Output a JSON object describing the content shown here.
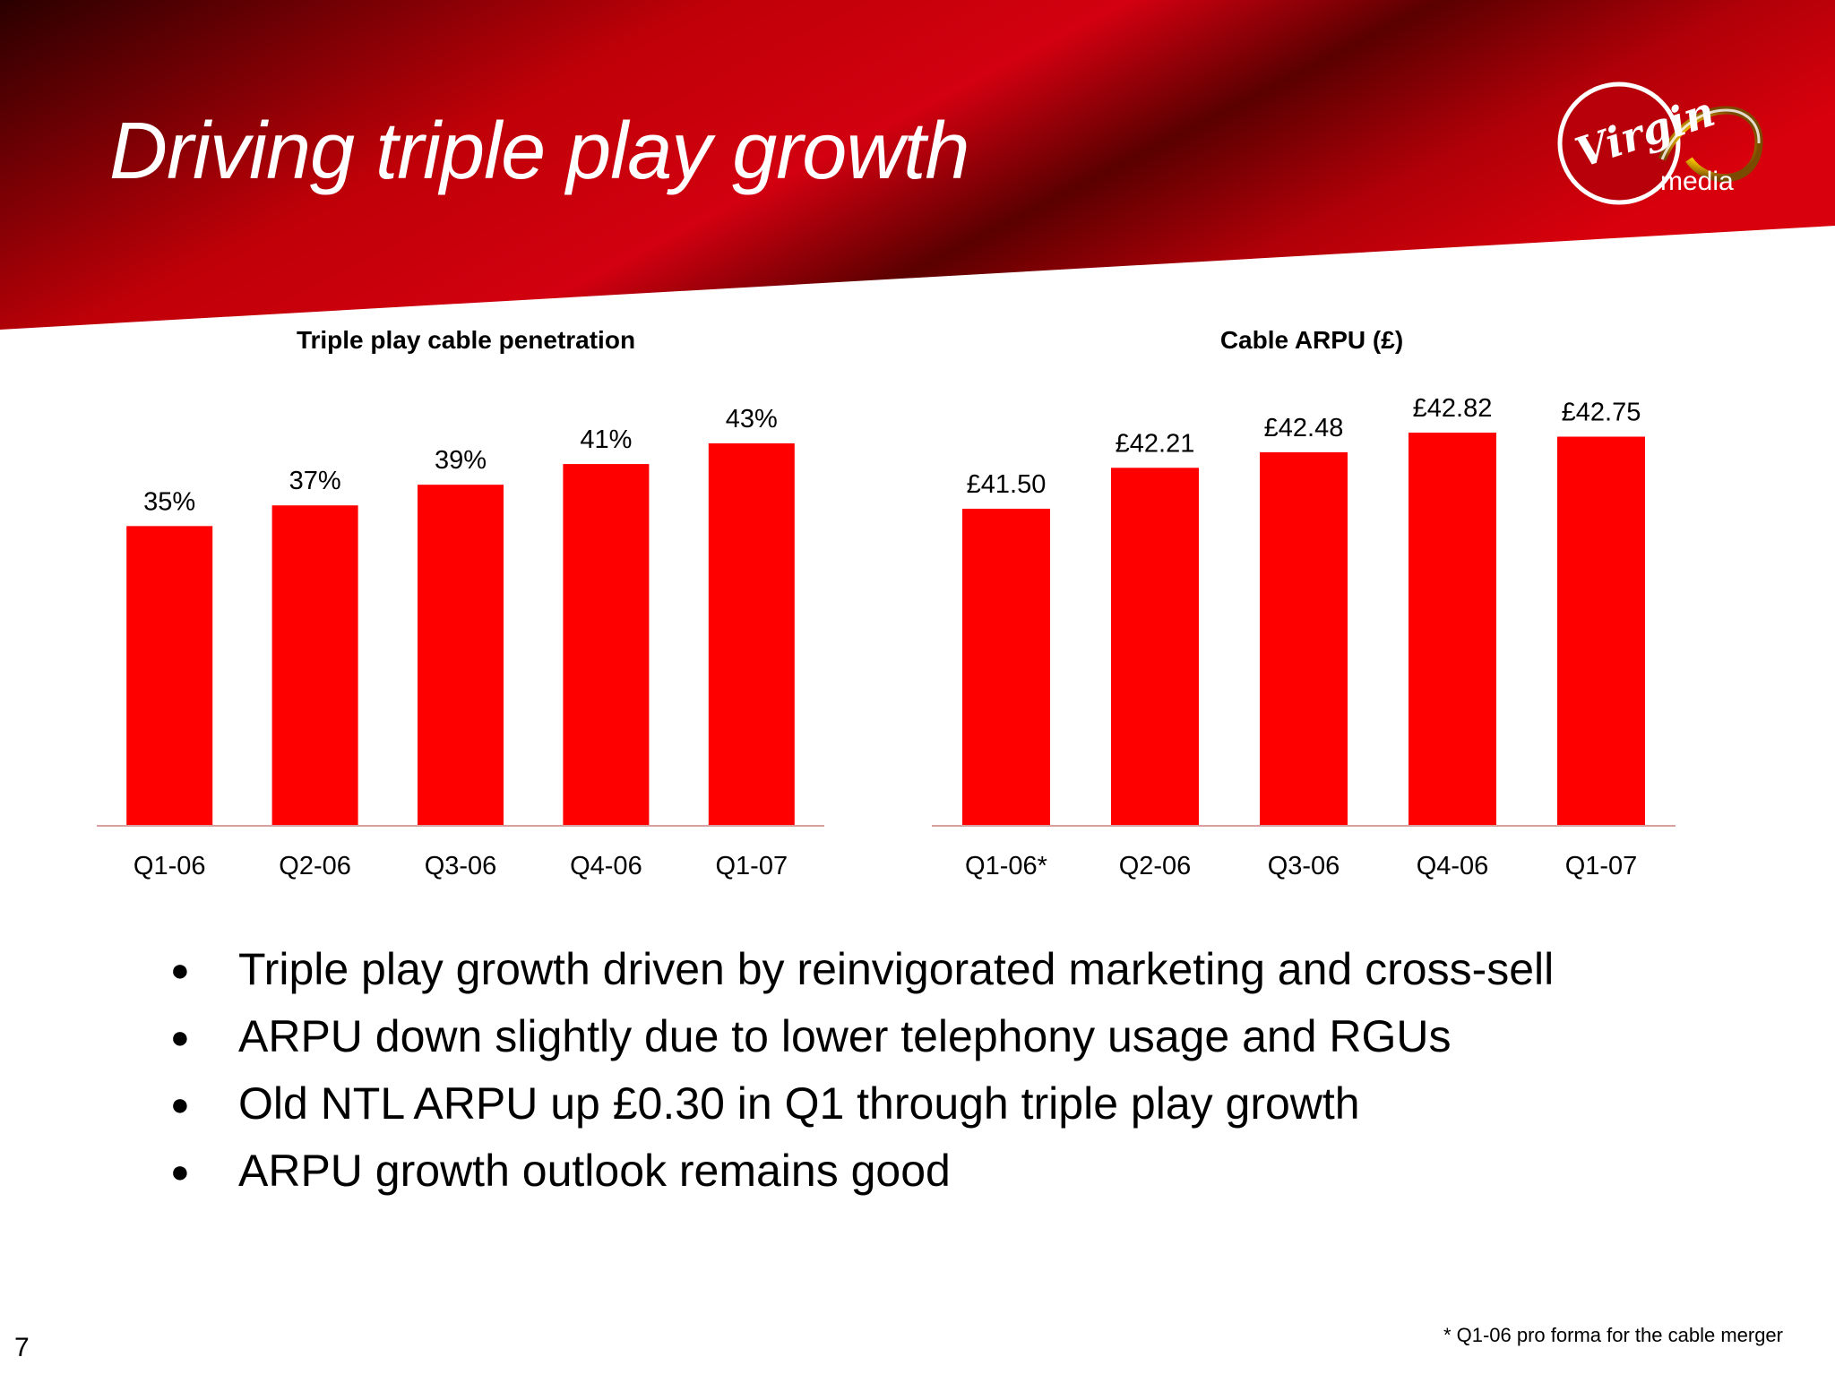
{
  "slide": {
    "title": "Driving triple play growth",
    "page_number": "7",
    "footnote": "* Q1-06 pro forma for the cable merger",
    "colors": {
      "bar": "#ff0000",
      "banner_dark": "#2a0000",
      "banner_red": "#c40008",
      "text": "#000000"
    }
  },
  "logo": {
    "line1": "Virgin",
    "line2": "media"
  },
  "bullets": [
    "Triple play growth driven by reinvigorated marketing and cross-sell",
    "ARPU down slightly due to lower telephony usage and RGUs",
    "Old NTL ARPU up £0.30 in Q1 through triple play growth",
    "ARPU growth outlook remains good"
  ],
  "chart_data": [
    {
      "type": "bar",
      "title": "Triple play cable penetration",
      "categories": [
        "Q1-06",
        "Q2-06",
        "Q3-06",
        "Q4-06",
        "Q1-07"
      ],
      "values": [
        35,
        37,
        39,
        41,
        43
      ],
      "data_labels": [
        "35%",
        "37%",
        "39%",
        "41%",
        "43%"
      ],
      "ylim": [
        6,
        43
      ],
      "color": "#ff0000",
      "grid": false
    },
    {
      "type": "bar",
      "title": "Cable ARPU (£)",
      "categories": [
        "Q1-06*",
        "Q2-06",
        "Q3-06",
        "Q4-06",
        "Q1-07"
      ],
      "values": [
        41.5,
        42.21,
        42.48,
        42.82,
        42.75
      ],
      "data_labels": [
        "£41.50",
        "£42.21",
        "£42.48",
        "£42.82",
        "£42.75"
      ],
      "ylim": [
        36.0,
        42.82
      ],
      "color": "#ff0000",
      "grid": false
    }
  ]
}
